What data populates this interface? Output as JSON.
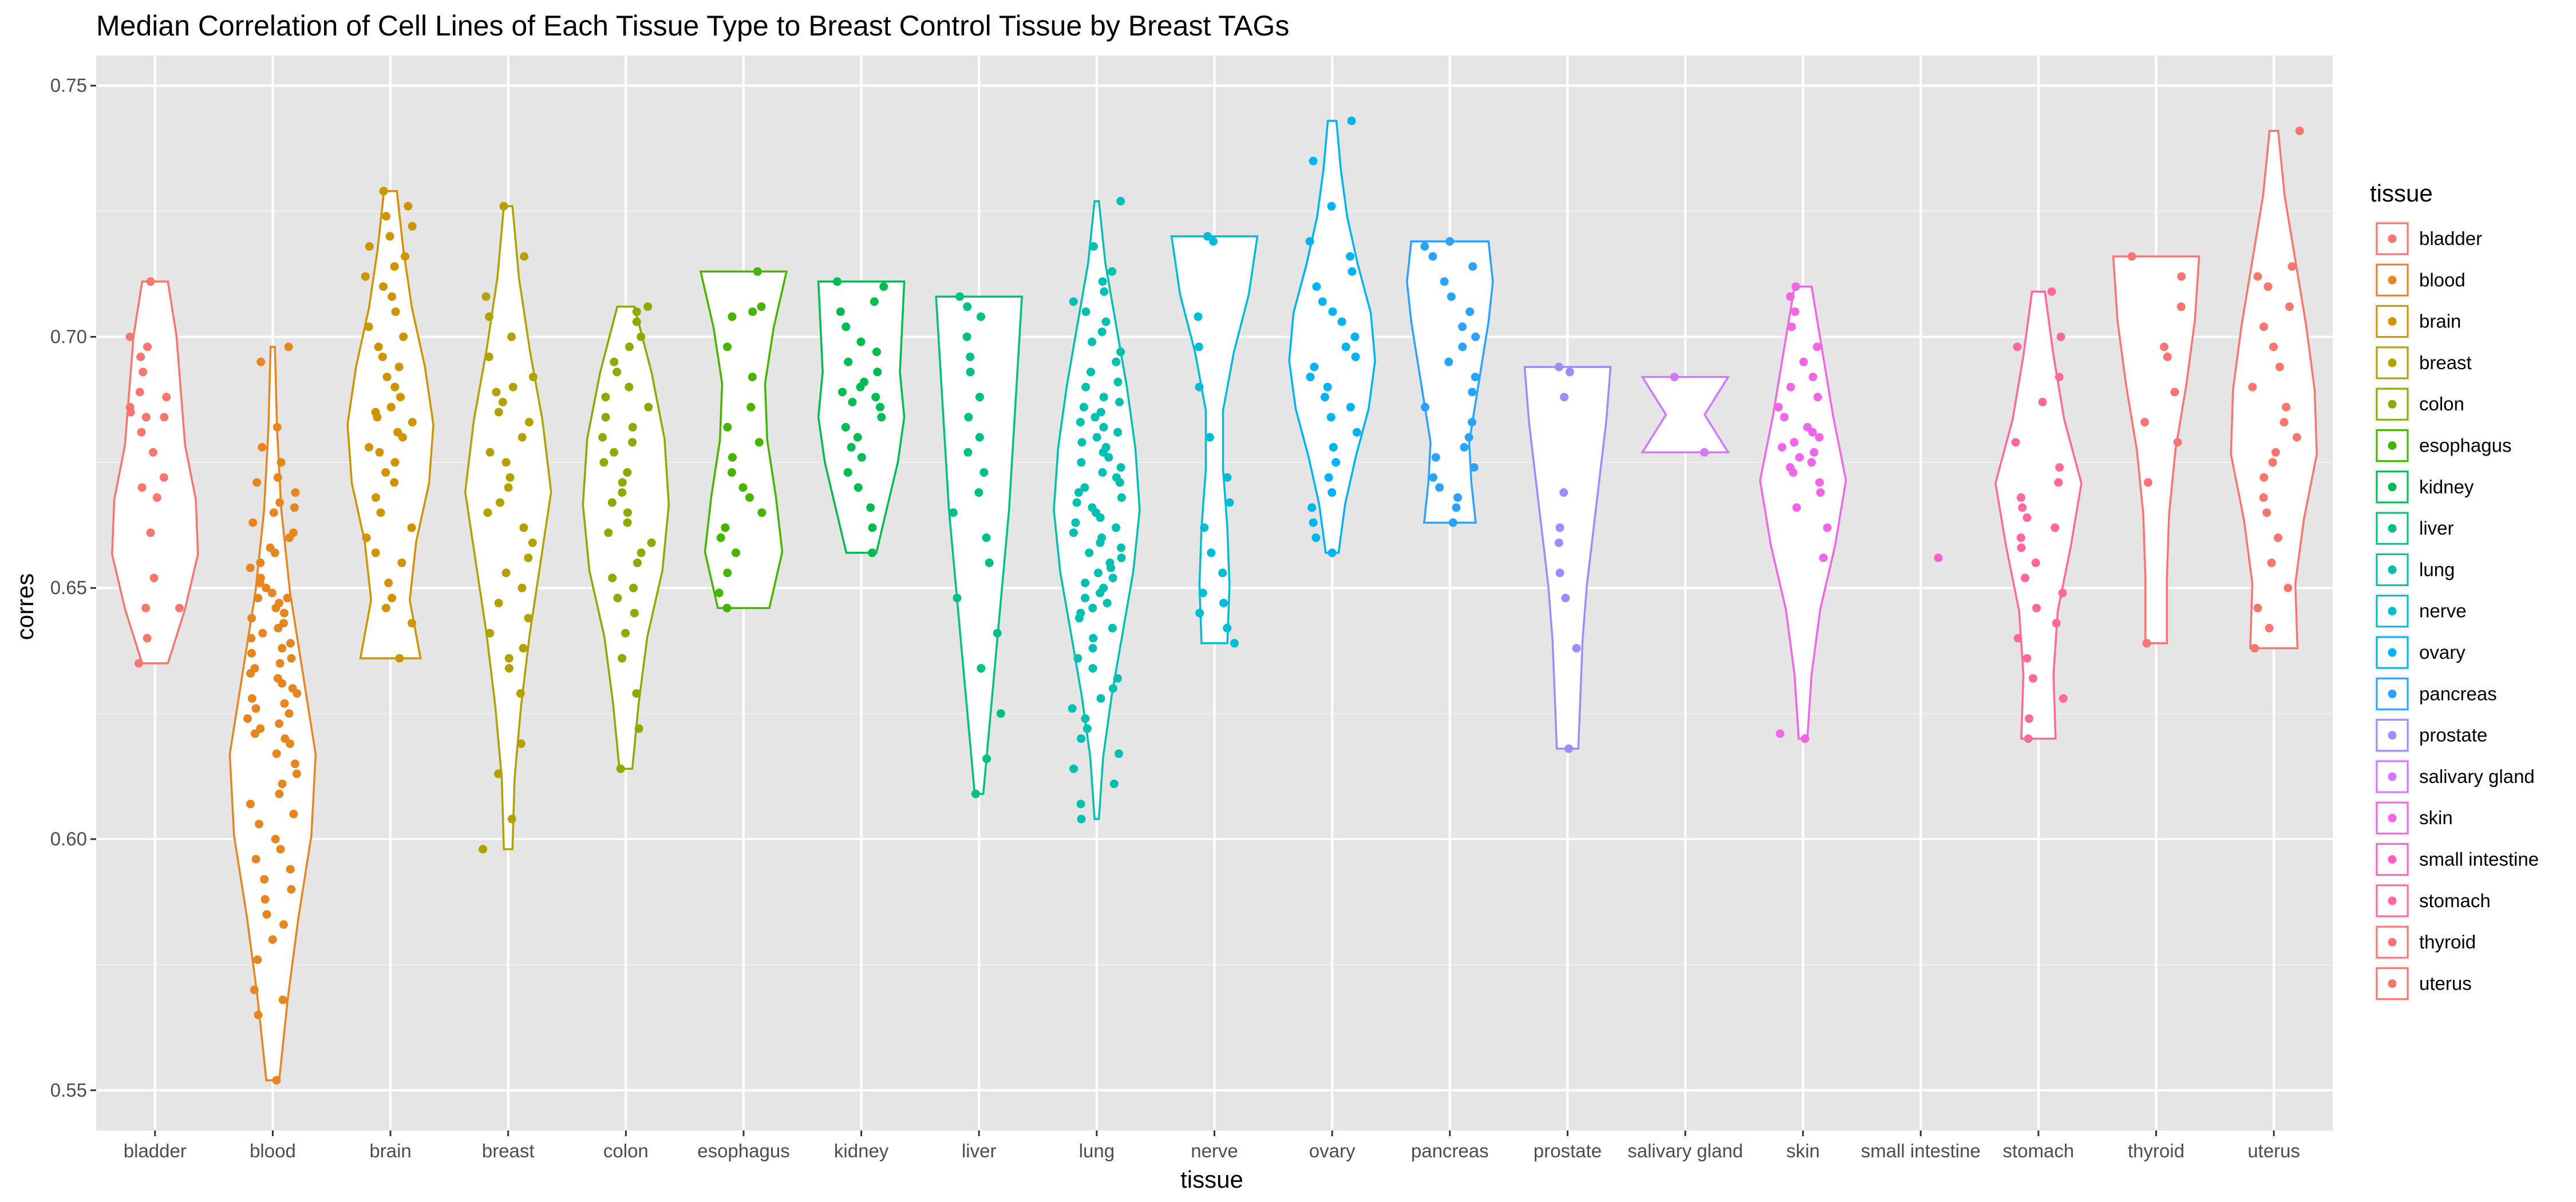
{
  "chart_data": {
    "type": "violin",
    "title": "Median Correlation of Cell Lines of Each Tissue Type to Breast Control Tissue by Breast TAGs",
    "xlabel": "tissue",
    "ylabel": "corres",
    "ylim": [
      0.542,
      0.756
    ],
    "yticks": [
      0.55,
      0.6,
      0.65,
      0.7,
      0.75
    ],
    "ytick_labels": [
      "0.55",
      "0.60",
      "0.65",
      "0.70",
      "0.75"
    ],
    "grid": true,
    "background": "#e5e5e5",
    "legend": {
      "title": "tissue",
      "position": "right"
    },
    "categories": [
      "bladder",
      "blood",
      "brain",
      "breast",
      "colon",
      "esophagus",
      "kidney",
      "liver",
      "lung",
      "nerve",
      "ovary",
      "pancreas",
      "prostate",
      "salivary gland",
      "skin",
      "small intestine",
      "stomach",
      "thyroid",
      "uterus"
    ],
    "colors": [
      "#F8766D",
      "#E7851E",
      "#D09400",
      "#B2A100",
      "#89AC00",
      "#45B500",
      "#00BC51",
      "#00C087",
      "#00C0B2",
      "#00BCD6",
      "#00B3F2",
      "#29A3FF",
      "#9C8DFF",
      "#D277FF",
      "#F166E8",
      "#FF61C7",
      "#FF689E",
      "#FA7476",
      "#F8766D"
    ],
    "series": [
      {
        "name": "bladder",
        "min": 0.635,
        "max": 0.711,
        "widths": [
          0.3,
          0.5,
          0.6,
          0.7,
          0.95,
          1.0,
          0.7,
          0.3
        ],
        "points": [
          0.711,
          0.7,
          0.698,
          0.696,
          0.693,
          0.689,
          0.688,
          0.686,
          0.685,
          0.684,
          0.684,
          0.681,
          0.677,
          0.672,
          0.67,
          0.668,
          0.661,
          0.652,
          0.646,
          0.646,
          0.64,
          0.635
        ]
      },
      {
        "name": "blood",
        "min": 0.552,
        "max": 0.698,
        "widths": [
          0.05,
          0.1,
          0.2,
          0.4,
          0.7,
          1.0,
          0.9,
          0.6,
          0.35,
          0.15
        ],
        "points": [
          0.698,
          0.695,
          0.682,
          0.678,
          0.675,
          0.672,
          0.671,
          0.669,
          0.667,
          0.666,
          0.665,
          0.663,
          0.661,
          0.66,
          0.658,
          0.657,
          0.655,
          0.654,
          0.652,
          0.651,
          0.65,
          0.649,
          0.648,
          0.648,
          0.647,
          0.646,
          0.645,
          0.644,
          0.643,
          0.642,
          0.641,
          0.64,
          0.639,
          0.638,
          0.637,
          0.636,
          0.635,
          0.634,
          0.633,
          0.632,
          0.631,
          0.63,
          0.629,
          0.628,
          0.627,
          0.626,
          0.625,
          0.624,
          0.623,
          0.622,
          0.621,
          0.62,
          0.619,
          0.617,
          0.615,
          0.613,
          0.611,
          0.609,
          0.607,
          0.605,
          0.603,
          0.6,
          0.598,
          0.596,
          0.594,
          0.592,
          0.59,
          0.588,
          0.585,
          0.583,
          0.58,
          0.576,
          0.57,
          0.568,
          0.565,
          0.552
        ]
      },
      {
        "name": "brain",
        "min": 0.636,
        "max": 0.729,
        "widths": [
          0.15,
          0.3,
          0.5,
          0.8,
          1.0,
          0.9,
          0.6,
          0.45,
          0.7
        ],
        "points": [
          0.729,
          0.726,
          0.724,
          0.722,
          0.72,
          0.718,
          0.716,
          0.714,
          0.712,
          0.71,
          0.708,
          0.705,
          0.702,
          0.7,
          0.698,
          0.696,
          0.694,
          0.692,
          0.69,
          0.688,
          0.686,
          0.685,
          0.684,
          0.683,
          0.681,
          0.68,
          0.678,
          0.677,
          0.675,
          0.673,
          0.671,
          0.668,
          0.665,
          0.662,
          0.66,
          0.657,
          0.655,
          0.651,
          0.648,
          0.646,
          0.643,
          0.636
        ]
      },
      {
        "name": "breast",
        "min": 0.598,
        "max": 0.726,
        "widths": [
          0.1,
          0.25,
          0.5,
          0.8,
          1.0,
          0.75,
          0.5,
          0.3,
          0.15,
          0.1
        ],
        "points": [
          0.726,
          0.716,
          0.708,
          0.704,
          0.7,
          0.696,
          0.692,
          0.69,
          0.689,
          0.687,
          0.685,
          0.683,
          0.68,
          0.677,
          0.675,
          0.672,
          0.67,
          0.667,
          0.665,
          0.662,
          0.659,
          0.656,
          0.653,
          0.65,
          0.647,
          0.644,
          0.641,
          0.638,
          0.636,
          0.634,
          0.629,
          0.619,
          0.613,
          0.604,
          0.598
        ]
      },
      {
        "name": "colon",
        "min": 0.614,
        "max": 0.706,
        "widths": [
          0.2,
          0.6,
          0.9,
          1.0,
          0.85,
          0.5,
          0.3,
          0.15
        ],
        "points": [
          0.706,
          0.705,
          0.703,
          0.7,
          0.698,
          0.695,
          0.693,
          0.69,
          0.688,
          0.686,
          0.684,
          0.682,
          0.68,
          0.679,
          0.677,
          0.675,
          0.673,
          0.671,
          0.669,
          0.667,
          0.665,
          0.663,
          0.661,
          0.659,
          0.657,
          0.655,
          0.652,
          0.65,
          0.648,
          0.645,
          0.641,
          0.636,
          0.629,
          0.622,
          0.614
        ]
      },
      {
        "name": "esophagus",
        "min": 0.646,
        "max": 0.713,
        "widths": [
          1.0,
          0.7,
          0.5,
          0.55,
          0.75,
          0.9,
          0.6
        ],
        "points": [
          0.713,
          0.706,
          0.705,
          0.704,
          0.698,
          0.692,
          0.686,
          0.682,
          0.679,
          0.676,
          0.673,
          0.67,
          0.668,
          0.665,
          0.662,
          0.66,
          0.657,
          0.653,
          0.649,
          0.646
        ]
      },
      {
        "name": "kidney",
        "min": 0.657,
        "max": 0.711,
        "widths": [
          1.0,
          0.95,
          0.9,
          1.0,
          0.85,
          0.6,
          0.35
        ],
        "points": [
          0.711,
          0.71,
          0.707,
          0.705,
          0.702,
          0.699,
          0.697,
          0.695,
          0.693,
          0.691,
          0.69,
          0.689,
          0.688,
          0.687,
          0.686,
          0.684,
          0.682,
          0.68,
          0.678,
          0.676,
          0.673,
          0.67,
          0.666,
          0.662,
          0.657
        ]
      },
      {
        "name": "liver",
        "min": 0.609,
        "max": 0.708,
        "widths": [
          1.0,
          0.9,
          0.8,
          0.7,
          0.55,
          0.4,
          0.25,
          0.1
        ],
        "points": [
          0.708,
          0.706,
          0.704,
          0.7,
          0.696,
          0.693,
          0.688,
          0.684,
          0.68,
          0.677,
          0.673,
          0.669,
          0.665,
          0.66,
          0.655,
          0.648,
          0.641,
          0.634,
          0.625,
          0.616,
          0.609
        ]
      },
      {
        "name": "lung",
        "min": 0.604,
        "max": 0.727,
        "widths": [
          0.05,
          0.2,
          0.45,
          0.7,
          0.9,
          1.0,
          0.85,
          0.6,
          0.35,
          0.15,
          0.05
        ],
        "points": [
          0.727,
          0.718,
          0.713,
          0.711,
          0.709,
          0.707,
          0.705,
          0.703,
          0.701,
          0.699,
          0.697,
          0.695,
          0.693,
          0.691,
          0.69,
          0.688,
          0.687,
          0.686,
          0.685,
          0.684,
          0.683,
          0.682,
          0.681,
          0.68,
          0.679,
          0.678,
          0.677,
          0.676,
          0.675,
          0.674,
          0.673,
          0.672,
          0.671,
          0.67,
          0.669,
          0.668,
          0.667,
          0.666,
          0.665,
          0.664,
          0.663,
          0.662,
          0.661,
          0.66,
          0.659,
          0.658,
          0.657,
          0.656,
          0.655,
          0.654,
          0.653,
          0.652,
          0.651,
          0.65,
          0.649,
          0.648,
          0.647,
          0.646,
          0.645,
          0.644,
          0.642,
          0.64,
          0.638,
          0.636,
          0.634,
          0.632,
          0.63,
          0.628,
          0.626,
          0.624,
          0.622,
          0.62,
          0.617,
          0.614,
          0.611,
          0.607,
          0.604
        ]
      },
      {
        "name": "nerve",
        "min": 0.639,
        "max": 0.72,
        "widths": [
          1.0,
          0.8,
          0.45,
          0.2,
          0.2,
          0.3,
          0.35,
          0.3
        ],
        "points": [
          0.72,
          0.719,
          0.704,
          0.698,
          0.69,
          0.68,
          0.672,
          0.667,
          0.662,
          0.657,
          0.653,
          0.649,
          0.647,
          0.645,
          0.642,
          0.639
        ]
      },
      {
        "name": "ovary",
        "min": 0.657,
        "max": 0.743,
        "widths": [
          0.1,
          0.2,
          0.35,
          0.6,
          0.9,
          1.0,
          0.85,
          0.55,
          0.3,
          0.15
        ],
        "points": [
          0.743,
          0.735,
          0.726,
          0.719,
          0.716,
          0.713,
          0.71,
          0.707,
          0.705,
          0.703,
          0.7,
          0.698,
          0.696,
          0.694,
          0.692,
          0.69,
          0.688,
          0.686,
          0.684,
          0.681,
          0.678,
          0.675,
          0.672,
          0.669,
          0.666,
          0.663,
          0.66,
          0.657
        ]
      },
      {
        "name": "pancreas",
        "min": 0.663,
        "max": 0.719,
        "widths": [
          0.9,
          1.0,
          0.9,
          0.75,
          0.6,
          0.45,
          0.5,
          0.6
        ],
        "points": [
          0.719,
          0.718,
          0.716,
          0.714,
          0.711,
          0.708,
          0.705,
          0.702,
          0.7,
          0.698,
          0.695,
          0.692,
          0.689,
          0.686,
          0.683,
          0.68,
          0.678,
          0.676,
          0.674,
          0.672,
          0.67,
          0.668,
          0.666,
          0.663
        ]
      },
      {
        "name": "prostate",
        "min": 0.618,
        "max": 0.694,
        "widths": [
          1.0,
          0.9,
          0.75,
          0.6,
          0.45,
          0.35,
          0.3,
          0.25
        ],
        "points": [
          0.694,
          0.693,
          0.688,
          0.669,
          0.662,
          0.659,
          0.653,
          0.648,
          0.638,
          0.618
        ]
      },
      {
        "name": "salivary gland",
        "min": 0.677,
        "max": 0.692,
        "widths": [
          1.0,
          0.45,
          1.0
        ],
        "points": [
          0.692,
          0.677
        ]
      },
      {
        "name": "skin",
        "min": 0.62,
        "max": 0.71,
        "widths": [
          0.2,
          0.45,
          0.7,
          1.0,
          0.75,
          0.4,
          0.2,
          0.1
        ],
        "points": [
          0.71,
          0.708,
          0.705,
          0.702,
          0.698,
          0.695,
          0.692,
          0.69,
          0.688,
          0.686,
          0.684,
          0.682,
          0.681,
          0.68,
          0.679,
          0.678,
          0.677,
          0.676,
          0.675,
          0.674,
          0.673,
          0.671,
          0.669,
          0.666,
          0.662,
          0.656,
          0.621,
          0.62
        ]
      },
      {
        "name": "small intestine",
        "min": 0.656,
        "max": 0.656,
        "widths": [],
        "points": [
          0.656
        ]
      },
      {
        "name": "stomach",
        "min": 0.62,
        "max": 0.709,
        "widths": [
          0.15,
          0.35,
          0.6,
          1.0,
          0.75,
          0.45,
          0.35,
          0.4
        ],
        "points": [
          0.709,
          0.7,
          0.698,
          0.692,
          0.687,
          0.679,
          0.674,
          0.671,
          0.668,
          0.666,
          0.664,
          0.662,
          0.66,
          0.658,
          0.655,
          0.652,
          0.649,
          0.646,
          0.643,
          0.64,
          0.636,
          0.632,
          0.628,
          0.624,
          0.62
        ]
      },
      {
        "name": "thyroid",
        "min": 0.639,
        "max": 0.716,
        "widths": [
          1.0,
          0.9,
          0.7,
          0.45,
          0.3,
          0.25,
          0.25
        ],
        "points": [
          0.716,
          0.712,
          0.706,
          0.698,
          0.696,
          0.689,
          0.683,
          0.679,
          0.671,
          0.639
        ]
      },
      {
        "name": "uterus",
        "min": 0.638,
        "max": 0.741,
        "widths": [
          0.1,
          0.25,
          0.5,
          0.75,
          0.95,
          1.0,
          0.7,
          0.5,
          0.55
        ],
        "points": [
          0.741,
          0.714,
          0.712,
          0.71,
          0.706,
          0.702,
          0.698,
          0.694,
          0.69,
          0.686,
          0.683,
          0.68,
          0.677,
          0.675,
          0.672,
          0.668,
          0.665,
          0.66,
          0.655,
          0.65,
          0.646,
          0.642,
          0.638
        ]
      }
    ]
  }
}
